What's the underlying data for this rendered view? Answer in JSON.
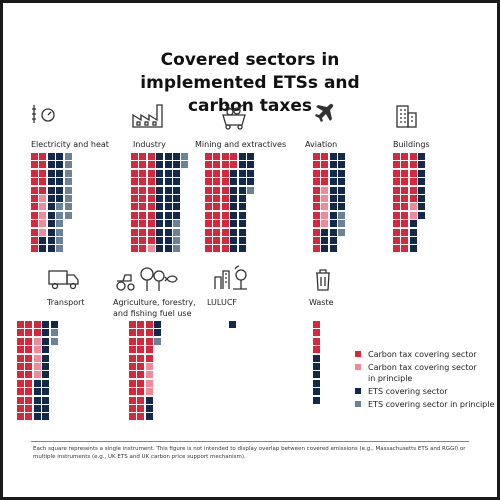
{
  "chart_data": {
    "type": "waffle",
    "title": "Covered sectors in implemented ETSs and carbon taxes",
    "unit_note": "Each square represents a single instrument.",
    "categories": [
      "Carbon tax covering sector",
      "Carbon tax covering sector in principle",
      "ETS covering sector",
      "ETS covering sector in principle"
    ],
    "colors": {
      "Carbon tax covering sector": "#d6283c",
      "Carbon tax covering sector in principle": "#f08a99",
      "ETS covering sector": "#13294b",
      "ETS covering sector in principle": "#6b8196"
    },
    "sectors": [
      {
        "name": "Electricity and heat",
        "icon": "electricity-icon",
        "counts": [
          17,
          5,
          20,
          14
        ]
      },
      {
        "name": "Industry",
        "icon": "factory-icon",
        "counts": [
          35,
          1,
          32,
          6
        ]
      },
      {
        "name": "Mining and extractives",
        "icon": "mining-icon",
        "counts": [
          38,
          0,
          26,
          1
        ]
      },
      {
        "name": "Aviation",
        "icon": "airplane-icon",
        "counts": [
          16,
          5,
          22,
          3
        ]
      },
      {
        "name": "Buildings",
        "icon": "buildings-icon",
        "counts": [
          30,
          2,
          12,
          0
        ]
      },
      {
        "name": "Transport",
        "icon": "truck-icon",
        "counts": [
          26,
          5,
          18,
          2
        ]
      },
      {
        "name": "Agriculture, forestry,\nand fishing fuel use",
        "icon": "agriculture-icon",
        "counts": [
          29,
          4,
          5,
          1
        ]
      },
      {
        "name": "LULUCF",
        "icon": "lulucf-icon",
        "counts": [
          0,
          0,
          1,
          0
        ]
      },
      {
        "name": "Waste",
        "icon": "trash-icon",
        "counts": [
          4,
          0,
          6,
          0
        ]
      }
    ]
  },
  "legend": [
    {
      "label": "Carbon tax covering sector",
      "color": "#d6283c"
    },
    {
      "label": "Carbon tax covering sector\nin principle",
      "color": "#f08a99"
    },
    {
      "label": "ETS covering sector",
      "color": "#13294b"
    },
    {
      "label": "ETS covering sector in principle",
      "color": "#6b8196"
    }
  ],
  "footnote": "Each square represents a single instrument. This figure is not intended to display overlap between covered emissions (e.g., Massachusetts ETS and RGGI) or multiple instruments (e.g., UK ETS and UK carbon price support mechanism)."
}
